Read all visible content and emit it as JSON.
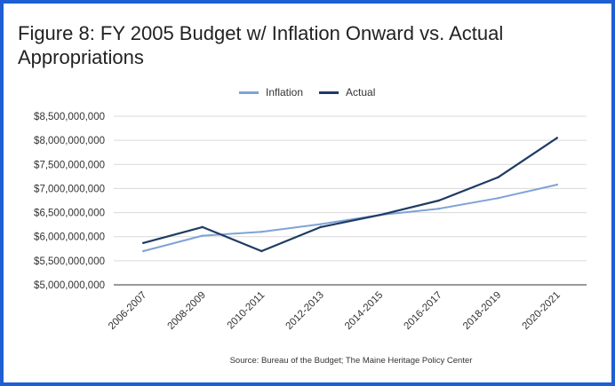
{
  "chart_data": {
    "type": "line",
    "title": "Figure 8: FY 2005 Budget w/ Inflation Onward vs. Actual Appropriations",
    "categories": [
      "2006-2007",
      "2008-2009",
      "2010-2011",
      "2012-2013",
      "2014-2015",
      "2016-2017",
      "2018-2019",
      "2020-2021"
    ],
    "series": [
      {
        "name": "Inflation",
        "color": "#7ea3d6",
        "values": [
          5700000000,
          6020000000,
          6100000000,
          6260000000,
          6450000000,
          6580000000,
          6800000000,
          7080000000
        ]
      },
      {
        "name": "Actual",
        "color": "#1f3b63",
        "values": [
          5870000000,
          6200000000,
          5700000000,
          6200000000,
          6450000000,
          6750000000,
          7230000000,
          8050000000
        ]
      }
    ],
    "yticks": [
      "$5,000,000,000",
      "$5,500,000,000",
      "$6,000,000,000",
      "$6,500,000,000",
      "$7,000,000,000",
      "$7,500,000,000",
      "$8,000,000,000",
      "$8,500,000,000"
    ],
    "ylim": [
      5000000000,
      8500000000
    ],
    "legend_position": "top",
    "grid": true,
    "source": "Source: Bureau of the Budget; The Maine Heritage Policy Center"
  }
}
